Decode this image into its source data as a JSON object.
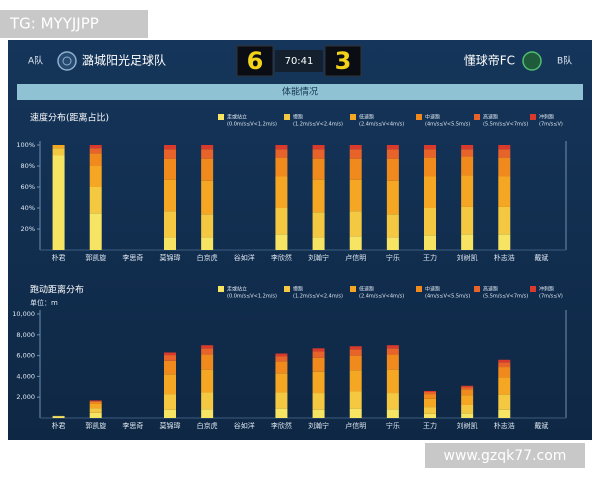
{
  "watermark": "TG: MYYJJPP",
  "site": "www.gzqk77.com",
  "header": {
    "team_a_label": "A队",
    "team_a_name": "潞城阳光足球队",
    "score_a": 6,
    "time": "70:41",
    "score_b": 3,
    "team_b_name": "懂球帝FC",
    "team_b_label": "B队"
  },
  "section_title": "体能情况",
  "chart_data": [
    {
      "type": "bar",
      "stacked": true,
      "title": "速度分布(距离占比)",
      "categories": [
        "朴君",
        "郭凯旋",
        "李思奇",
        "莫锦瑋",
        "白京虎",
        "谷如洋",
        "李欣然",
        "刘瀚宁",
        "卢信明",
        "宁乐",
        "王力",
        "刘树凯",
        "朴志浩",
        "戴斌"
      ],
      "series": [
        {
          "name": "走或站立",
          "range": "(0.0m/s≤V<1.2m/s)",
          "color": "#f7e463",
          "values": [
            90,
            35,
            null,
            12,
            12,
            null,
            15,
            12,
            13,
            12,
            14,
            15,
            15,
            null
          ]
        },
        {
          "name": "慢跑",
          "range": "(1.2m/s≤V<2.4m/s)",
          "color": "#f5c842",
          "values": [
            7,
            25,
            null,
            25,
            22,
            null,
            25,
            24,
            24,
            22,
            26,
            26,
            26,
            null
          ]
        },
        {
          "name": "低速跑",
          "range": "(2.4m/s≤V<4m/s)",
          "color": "#f5a623",
          "values": [
            3,
            20,
            null,
            30,
            32,
            null,
            30,
            31,
            30,
            32,
            30,
            30,
            29,
            null
          ]
        },
        {
          "name": "中速跑",
          "range": "(4m/s≤V<5.5m/s)",
          "color": "#f08a1c",
          "values": [
            0,
            12,
            null,
            20,
            21,
            null,
            18,
            20,
            20,
            21,
            18,
            18,
            18,
            null
          ]
        },
        {
          "name": "高速跑",
          "range": "(5.5m/s≤V<7m/s)",
          "color": "#e8632a",
          "values": [
            0,
            5,
            null,
            9,
            9,
            null,
            8,
            9,
            9,
            9,
            8,
            7,
            8,
            null
          ]
        },
        {
          "name": "冲刺跑",
          "range": "(7m/s≤V)",
          "color": "#d93a2b",
          "values": [
            0,
            3,
            null,
            4,
            4,
            null,
            4,
            4,
            4,
            4,
            4,
            4,
            4,
            null
          ]
        }
      ],
      "ylim": [
        0,
        100
      ],
      "yticks": [
        {
          "value": 20,
          "label": "20%"
        },
        {
          "value": 40,
          "label": "40%"
        },
        {
          "value": 60,
          "label": "60%"
        },
        {
          "value": 80,
          "label": "80%"
        },
        {
          "value": 100,
          "label": "100%"
        }
      ]
    },
    {
      "type": "bar",
      "stacked": true,
      "title": "跑动距离分布",
      "unit": "单位：m",
      "categories": [
        "朴君",
        "郭凯旋",
        "李思奇",
        "莫锦瑋",
        "白京虎",
        "谷如洋",
        "李欣然",
        "刘瀚宁",
        "卢信明",
        "宁乐",
        "王力",
        "刘树凯",
        "朴志浩",
        "戴斌"
      ],
      "series": [
        {
          "name": "走或站立",
          "range": "(0.0m/s≤V<1.2m/s)",
          "color": "#f7e463",
          "values": [
            180,
            500,
            null,
            800,
            850,
            null,
            900,
            800,
            900,
            850,
            400,
            450,
            800,
            null
          ]
        },
        {
          "name": "慢跑",
          "range": "(1.2m/s≤V<2.4m/s)",
          "color": "#f5c842",
          "values": [
            20,
            450,
            null,
            1500,
            1600,
            null,
            1550,
            1600,
            1650,
            1550,
            650,
            800,
            1450,
            null
          ]
        },
        {
          "name": "低速跑",
          "range": "(2.4m/s≤V<4m/s)",
          "color": "#f5a623",
          "values": [
            0,
            400,
            null,
            1900,
            2200,
            null,
            1850,
            2050,
            2050,
            2250,
            800,
            950,
            1650,
            null
          ]
        },
        {
          "name": "中速跑",
          "range": "(4m/s≤V<5.5m/s)",
          "color": "#f08a1c",
          "values": [
            0,
            200,
            null,
            1300,
            1450,
            null,
            1150,
            1350,
            1400,
            1450,
            450,
            550,
            1000,
            null
          ]
        },
        {
          "name": "高速跑",
          "range": "(5.5m/s≤V<7m/s)",
          "color": "#e8632a",
          "values": [
            0,
            100,
            null,
            550,
            600,
            null,
            500,
            600,
            600,
            600,
            200,
            220,
            450,
            null
          ]
        },
        {
          "name": "冲刺跑",
          "range": "(7m/s≤V)",
          "color": "#d93a2b",
          "values": [
            0,
            50,
            null,
            250,
            300,
            null,
            250,
            300,
            300,
            300,
            100,
            130,
            250,
            null
          ]
        }
      ],
      "ylim": [
        0,
        10000
      ],
      "yticks": [
        {
          "value": 2000,
          "label": "2,000"
        },
        {
          "value": 4000,
          "label": "4,000"
        },
        {
          "value": 6000,
          "label": "6,000"
        },
        {
          "value": 8000,
          "label": "8,000"
        },
        {
          "value": 10000,
          "label": "10,000"
        }
      ]
    }
  ]
}
